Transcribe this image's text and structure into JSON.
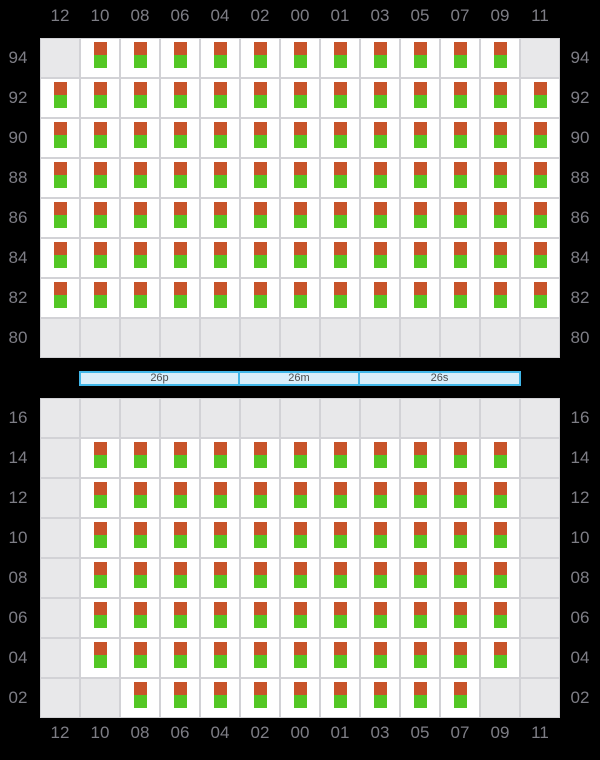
{
  "colors": {
    "background": "#000000",
    "filled_cell": "#ffffff",
    "empty_cell": "#e8e8ea",
    "grid_line": "#d2d2d6",
    "marker_orange": "#c7532a",
    "marker_green": "#53c724",
    "axis_label": "#7d7d85",
    "hatch_fill": "#d9eefa",
    "hatch_border": "#41b7e9",
    "hatch_text": "#4d4d4d"
  },
  "chart_data": {
    "type": "heatmap",
    "columns": [
      "12",
      "10",
      "08",
      "06",
      "04",
      "02",
      "00",
      "01",
      "03",
      "05",
      "07",
      "09",
      "11"
    ],
    "panels": [
      {
        "name": "upper-tiers",
        "row_labels": [
          "94",
          "92",
          "90",
          "88",
          "86",
          "84",
          "82",
          "80"
        ],
        "cells": [
          [
            0,
            1,
            1,
            1,
            1,
            1,
            1,
            1,
            1,
            1,
            1,
            1,
            0
          ],
          [
            1,
            1,
            1,
            1,
            1,
            1,
            1,
            1,
            1,
            1,
            1,
            1,
            1
          ],
          [
            1,
            1,
            1,
            1,
            1,
            1,
            1,
            1,
            1,
            1,
            1,
            1,
            1
          ],
          [
            1,
            1,
            1,
            1,
            1,
            1,
            1,
            1,
            1,
            1,
            1,
            1,
            1
          ],
          [
            1,
            1,
            1,
            1,
            1,
            1,
            1,
            1,
            1,
            1,
            1,
            1,
            1
          ],
          [
            1,
            1,
            1,
            1,
            1,
            1,
            1,
            1,
            1,
            1,
            1,
            1,
            1
          ],
          [
            1,
            1,
            1,
            1,
            1,
            1,
            1,
            1,
            1,
            1,
            1,
            1,
            1
          ],
          [
            0,
            0,
            0,
            0,
            0,
            0,
            0,
            0,
            0,
            0,
            0,
            0,
            0
          ]
        ]
      },
      {
        "name": "lower-tiers",
        "row_labels": [
          "16",
          "14",
          "12",
          "10",
          "08",
          "06",
          "04",
          "02"
        ],
        "cells": [
          [
            0,
            0,
            0,
            0,
            0,
            0,
            0,
            0,
            0,
            0,
            0,
            0,
            0
          ],
          [
            0,
            1,
            1,
            1,
            1,
            1,
            1,
            1,
            1,
            1,
            1,
            1,
            0
          ],
          [
            0,
            1,
            1,
            1,
            1,
            1,
            1,
            1,
            1,
            1,
            1,
            1,
            0
          ],
          [
            0,
            1,
            1,
            1,
            1,
            1,
            1,
            1,
            1,
            1,
            1,
            1,
            0
          ],
          [
            0,
            1,
            1,
            1,
            1,
            1,
            1,
            1,
            1,
            1,
            1,
            1,
            0
          ],
          [
            0,
            1,
            1,
            1,
            1,
            1,
            1,
            1,
            1,
            1,
            1,
            1,
            0
          ],
          [
            0,
            1,
            1,
            1,
            1,
            1,
            1,
            1,
            1,
            1,
            1,
            1,
            0
          ],
          [
            0,
            0,
            1,
            1,
            1,
            1,
            1,
            1,
            1,
            1,
            1,
            0,
            0
          ]
        ]
      }
    ],
    "hatch_segments": [
      {
        "label": "26p",
        "columns_spanned": 4
      },
      {
        "label": "26m",
        "columns_spanned": 3
      },
      {
        "label": "26s",
        "columns_spanned": 4
      }
    ],
    "cell_encoding": {
      "1": "slot with orange (top) and green (bottom) markers",
      "0": "gray empty slot"
    }
  }
}
